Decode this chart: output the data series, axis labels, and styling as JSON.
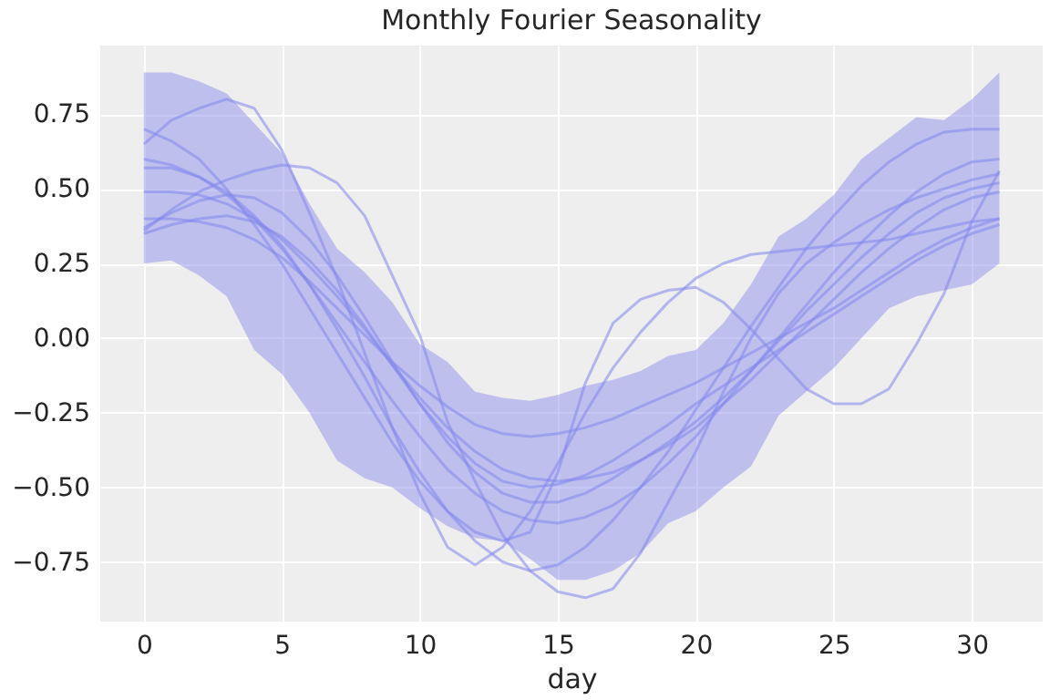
{
  "chart_data": {
    "type": "line",
    "title": "Monthly Fourier Seasonality",
    "xlabel": "day",
    "x": [
      0,
      1,
      2,
      3,
      4,
      5,
      6,
      7,
      8,
      9,
      10,
      11,
      12,
      13,
      14,
      15,
      16,
      17,
      18,
      19,
      20,
      21,
      22,
      23,
      24,
      25,
      26,
      27,
      28,
      29,
      30,
      31
    ],
    "xlim": [
      -1.58,
      32.57
    ],
    "xticks": [
      0,
      5,
      10,
      15,
      20,
      25,
      30
    ],
    "ylim": [
      -0.95,
      0.98
    ],
    "yticks": [
      {
        "value": -0.75,
        "label": "−0.75"
      },
      {
        "value": -0.5,
        "label": "−0.50"
      },
      {
        "value": -0.25,
        "label": "−0.25"
      },
      {
        "value": 0,
        "label": "0.00"
      },
      {
        "value": 0.25,
        "label": "0.25"
      },
      {
        "value": 0.5,
        "label": "0.50"
      },
      {
        "value": 0.75,
        "label": "0.75"
      }
    ],
    "grid": true,
    "series": [
      {
        "color": "#8286ec",
        "values": [
          0.49,
          0.49,
          0.48,
          0.45,
          0.4,
          0.33,
          0.24,
          0.14,
          0.03,
          -0.09,
          -0.2,
          -0.3,
          -0.38,
          -0.44,
          -0.47,
          -0.48,
          -0.47,
          -0.45,
          -0.41,
          -0.36,
          -0.3,
          -0.22,
          -0.14,
          -0.05,
          0.04,
          0.13,
          0.22,
          0.3,
          0.37,
          0.43,
          0.47,
          0.49
        ],
        "upper": [
          0.89,
          0.89,
          0.86,
          0.82,
          0.72,
          0.62,
          0.45,
          0.3,
          0.22,
          0.12,
          -0.02,
          -0.08,
          -0.18,
          -0.2,
          -0.21,
          -0.19,
          -0.16,
          -0.14,
          -0.11,
          -0.06,
          -0.04,
          0.05,
          0.18,
          0.34,
          0.4,
          0.48,
          0.6,
          0.67,
          0.74,
          0.73,
          0.8,
          0.89
        ],
        "lower": [
          0.25,
          0.26,
          0.21,
          0.14,
          -0.04,
          -0.12,
          -0.25,
          -0.41,
          -0.47,
          -0.5,
          -0.57,
          -0.63,
          -0.67,
          -0.68,
          -0.74,
          -0.81,
          -0.81,
          -0.78,
          -0.72,
          -0.62,
          -0.58,
          -0.5,
          -0.43,
          -0.26,
          -0.18,
          -0.1,
          0.0,
          0.1,
          0.14,
          0.16,
          0.18,
          0.25
        ]
      },
      {
        "color": "#8286ec",
        "values": [
          0.65,
          0.73,
          0.77,
          0.8,
          0.77,
          0.63,
          0.42,
          0.2,
          -0.05,
          -0.3,
          -0.52,
          -0.7,
          -0.76,
          -0.7,
          -0.58,
          -0.42,
          -0.25,
          -0.1,
          0.02,
          0.12,
          0.2,
          0.25,
          0.28,
          0.29,
          0.3,
          0.31,
          0.32,
          0.33,
          0.35,
          0.37,
          0.39,
          0.4
        ]
      },
      {
        "color": "#8286ec",
        "values": [
          0.36,
          0.43,
          0.49,
          0.53,
          0.56,
          0.58,
          0.57,
          0.52,
          0.41,
          0.21,
          0.01,
          -0.28,
          -0.48,
          -0.66,
          -0.78,
          -0.85,
          -0.87,
          -0.84,
          -0.72,
          -0.55,
          -0.38,
          -0.18,
          0.0,
          0.15,
          0.25,
          0.32,
          0.38,
          0.43,
          0.47,
          0.5,
          0.53,
          0.55
        ]
      },
      {
        "color": "#8286ec",
        "values": [
          0.7,
          0.66,
          0.6,
          0.5,
          0.38,
          0.25,
          0.1,
          -0.05,
          -0.2,
          -0.35,
          -0.48,
          -0.58,
          -0.65,
          -0.68,
          -0.65,
          -0.45,
          -0.15,
          0.05,
          0.13,
          0.16,
          0.17,
          0.12,
          0.03,
          -0.07,
          -0.17,
          -0.22,
          -0.22,
          -0.17,
          -0.02,
          0.15,
          0.39,
          0.56
        ]
      },
      {
        "color": "#8286ec",
        "values": [
          0.4,
          0.4,
          0.39,
          0.37,
          0.33,
          0.27,
          0.19,
          0.1,
          0.01,
          -0.08,
          -0.16,
          -0.23,
          -0.29,
          -0.32,
          -0.33,
          -0.32,
          -0.3,
          -0.27,
          -0.23,
          -0.19,
          -0.15,
          -0.1,
          -0.05,
          0.0,
          0.05,
          0.1,
          0.16,
          0.22,
          0.28,
          0.33,
          0.37,
          0.4
        ]
      },
      {
        "color": "#8286ec",
        "values": [
          0.6,
          0.58,
          0.54,
          0.48,
          0.4,
          0.3,
          0.18,
          0.05,
          -0.08,
          -0.21,
          -0.33,
          -0.44,
          -0.52,
          -0.58,
          -0.61,
          -0.62,
          -0.6,
          -0.56,
          -0.5,
          -0.42,
          -0.33,
          -0.22,
          -0.11,
          0.0,
          0.11,
          0.22,
          0.32,
          0.41,
          0.49,
          0.55,
          0.59,
          0.6
        ]
      },
      {
        "color": "#8286ec",
        "values": [
          0.37,
          0.42,
          0.46,
          0.48,
          0.47,
          0.42,
          0.33,
          0.21,
          0.07,
          -0.08,
          -0.22,
          -0.35,
          -0.45,
          -0.52,
          -0.55,
          -0.55,
          -0.52,
          -0.47,
          -0.41,
          -0.35,
          -0.28,
          -0.2,
          -0.11,
          -0.01,
          0.09,
          0.18,
          0.27,
          0.35,
          0.42,
          0.47,
          0.5,
          0.52
        ]
      },
      {
        "color": "#8286ec",
        "values": [
          0.57,
          0.57,
          0.54,
          0.49,
          0.41,
          0.31,
          0.18,
          0.03,
          -0.13,
          -0.3,
          -0.45,
          -0.58,
          -0.68,
          -0.75,
          -0.78,
          -0.76,
          -0.7,
          -0.61,
          -0.5,
          -0.38,
          -0.24,
          -0.1,
          0.04,
          0.17,
          0.3,
          0.41,
          0.51,
          0.59,
          0.65,
          0.69,
          0.7,
          0.7
        ]
      },
      {
        "color": "#8286ec",
        "values": [
          0.35,
          0.38,
          0.4,
          0.41,
          0.39,
          0.34,
          0.26,
          0.16,
          0.04,
          -0.09,
          -0.22,
          -0.33,
          -0.42,
          -0.48,
          -0.5,
          -0.49,
          -0.46,
          -0.41,
          -0.35,
          -0.29,
          -0.22,
          -0.16,
          -0.1,
          -0.04,
          0.02,
          0.08,
          0.14,
          0.2,
          0.26,
          0.31,
          0.35,
          0.38
        ]
      }
    ]
  }
}
